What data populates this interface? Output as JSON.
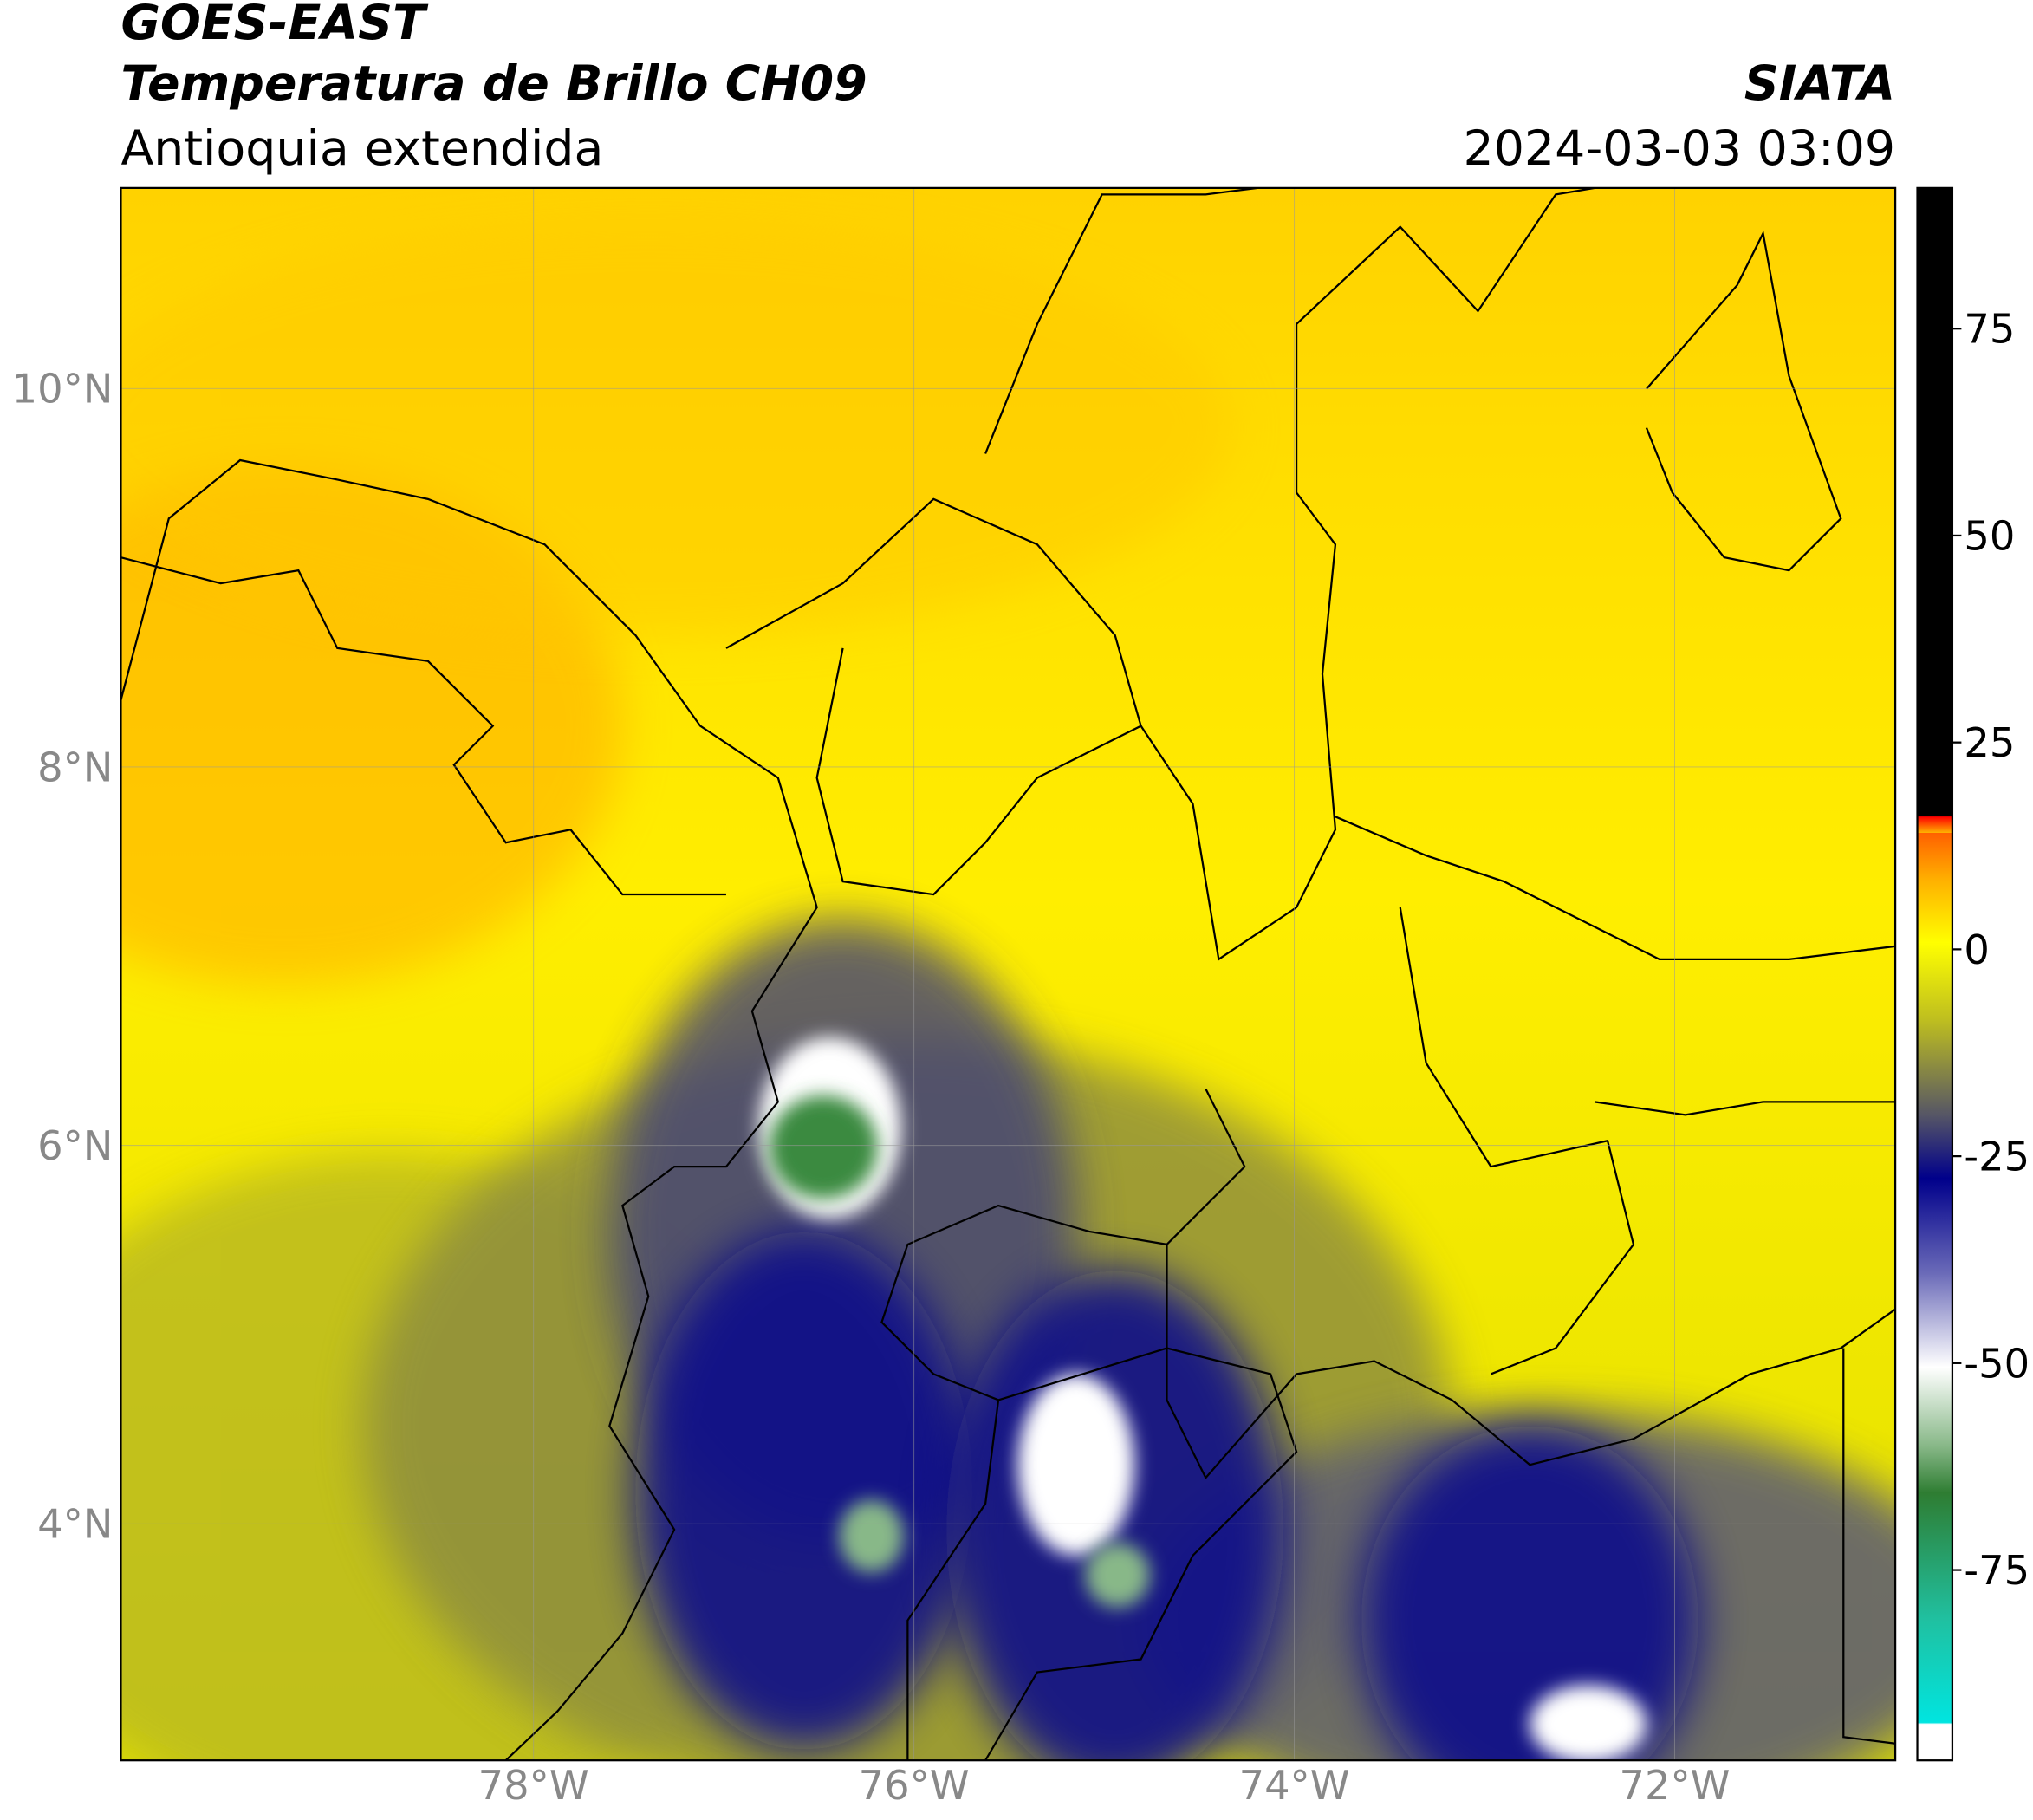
{
  "header": {
    "title": "GOES-EAST",
    "subtitle": "Temperatura de Brillo CH09",
    "region": "Antioquia extendida",
    "source": "SIATA",
    "datetime": "2024-03-03 03:09"
  },
  "map": {
    "lon_range": [
      -80.17,
      -70.84
    ],
    "lat_range": [
      2.75,
      11.06
    ],
    "lon_ticks": [
      {
        "value": -78,
        "label": "78°W"
      },
      {
        "value": -76,
        "label": "76°W"
      },
      {
        "value": -74,
        "label": "74°W"
      },
      {
        "value": -72,
        "label": "72°W"
      }
    ],
    "lat_ticks": [
      {
        "value": 10,
        "label": "10°N"
      },
      {
        "value": 8,
        "label": "8°N"
      },
      {
        "value": 6,
        "label": "6°N"
      },
      {
        "value": 4,
        "label": "4°N"
      }
    ]
  },
  "colorbar": {
    "range": [
      -98,
      92
    ],
    "ticks": [
      75,
      50,
      25,
      0,
      -25,
      -50,
      -75
    ]
  }
}
